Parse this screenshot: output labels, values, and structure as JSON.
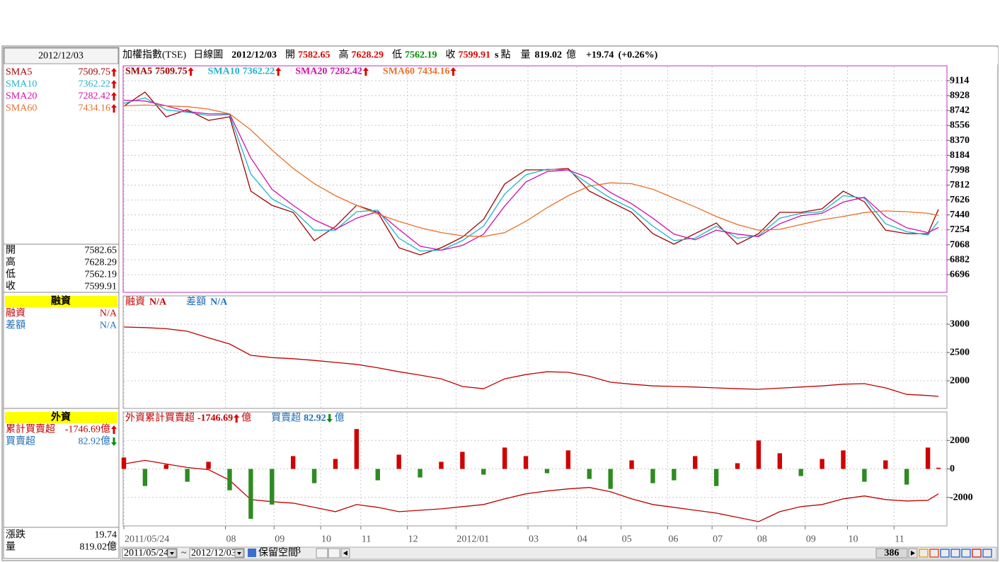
{
  "header": {
    "name": "加權指數(TSE)",
    "period": "日線圖",
    "date": "2012/12/03",
    "open_label": "開",
    "open": 7582.65,
    "high_label": "高",
    "high": 7628.29,
    "low_label": "低",
    "low": 7562.19,
    "close_label": "收",
    "close": 7599.91,
    "unit_s": "s",
    "unit": "點",
    "volume_label": "量",
    "volume": 819.02,
    "volume_unit": "億",
    "change": "+19.74",
    "change_pct": "(+0.26%)"
  },
  "sidebar": {
    "date": "2012/12/03",
    "margin_title": "融資",
    "foreign_title": "外資",
    "change_label": "漲跌",
    "change": 19.74
  },
  "chart_data": {
    "type": "stock-panels",
    "grid": true,
    "x": [
      0,
      10,
      20,
      30,
      40,
      50,
      60,
      70,
      80,
      90,
      100,
      110,
      120,
      130,
      140,
      150,
      160,
      170,
      180,
      190,
      200,
      210,
      220,
      230,
      240,
      250,
      260,
      270,
      280,
      290,
      300,
      310,
      320,
      330,
      340,
      350,
      360,
      370,
      380,
      385
    ],
    "xlim": [
      0,
      389
    ],
    "xticks": [
      {
        "value": 0,
        "label": "2011/05/24"
      },
      {
        "value": 48,
        "label": "08"
      },
      {
        "value": 71,
        "label": "09"
      },
      {
        "value": 93,
        "label": "10"
      },
      {
        "value": 112,
        "label": "11"
      },
      {
        "value": 134,
        "label": "12"
      },
      {
        "value": 157,
        "label": "2012/01"
      },
      {
        "value": 191,
        "label": "03"
      },
      {
        "value": 214,
        "label": "04"
      },
      {
        "value": 235,
        "label": "05"
      },
      {
        "value": 257,
        "label": "06"
      },
      {
        "value": 278,
        "label": "07"
      },
      {
        "value": 299,
        "label": "08"
      },
      {
        "value": 322,
        "label": "09"
      },
      {
        "value": 342,
        "label": "10"
      },
      {
        "value": 364,
        "label": "11"
      }
    ],
    "panels": [
      {
        "type": "line",
        "ylim": [
          6475,
          9299
        ],
        "yticks": [
          6696,
          6882,
          7068,
          7254,
          7440,
          7626,
          7812,
          7998,
          8184,
          8370,
          8556,
          8742,
          8928,
          9114
        ],
        "border": "#c030c0",
        "series": [
          {
            "name": "SMA5",
            "color": "#a00000",
            "latest": 7509.75,
            "trend": "up",
            "values": [
              8796,
              8972,
              8663,
              8752,
              8619,
              8663,
              7737,
              7560,
              7472,
              7119,
              7296,
              7560,
              7472,
              7031,
              6942,
              7031,
              7163,
              7384,
              7825,
              8002,
              8002,
              8019,
              7737,
              7604,
              7472,
              7207,
              7075,
              7207,
              7340,
              7075,
              7207,
              7472,
              7472,
              7516,
              7737,
              7604,
              7251,
              7207,
              7207,
              7509.75
            ]
          },
          {
            "name": "SMA10",
            "color": "#20b4c8",
            "latest": 7362.22,
            "trend": "up",
            "values": [
              8830,
              8900,
              8750,
              8720,
              8680,
              8690,
              7950,
              7640,
              7500,
              7250,
              7250,
              7480,
              7500,
              7150,
              6990,
              7000,
              7120,
              7300,
              7700,
              7940,
              8010,
              8000,
              7820,
              7650,
              7520,
              7300,
              7120,
              7150,
              7300,
              7150,
              7180,
              7400,
              7460,
              7480,
              7680,
              7650,
              7330,
              7230,
              7190,
              7362.22
            ]
          },
          {
            "name": "SMA20",
            "color": "#d010a8",
            "latest": 7282.42,
            "trend": "up",
            "values": [
              8870,
              8860,
              8800,
              8730,
              8700,
              8700,
              8150,
              7760,
              7560,
              7380,
              7260,
              7400,
              7480,
              7260,
              7050,
              7000,
              7060,
              7200,
              7550,
              7850,
              7980,
              8000,
              7900,
              7720,
              7580,
              7400,
              7200,
              7130,
              7250,
              7200,
              7170,
              7330,
              7430,
              7460,
              7600,
              7660,
              7420,
              7280,
              7220,
              7282.42
            ]
          },
          {
            "name": "SMA60",
            "color": "#e8702a",
            "latest": 7434.16,
            "trend": "up",
            "values": [
              8800,
              8810,
              8800,
              8790,
              8760,
              8700,
              8500,
              8250,
              8020,
              7830,
              7680,
              7560,
              7450,
              7360,
              7280,
              7220,
              7180,
              7170,
              7220,
              7360,
              7530,
              7680,
              7800,
              7840,
              7830,
              7760,
              7650,
              7540,
              7420,
              7320,
              7250,
              7260,
              7320,
              7380,
              7420,
              7470,
              7490,
              7480,
              7460,
              7434.16
            ]
          }
        ]
      },
      {
        "type": "line",
        "ylim": [
          1512,
          3500
        ],
        "yticks": [
          2000,
          2500,
          3000
        ],
        "border": "#999999",
        "series": [
          {
            "name": "融資",
            "color": "#c00000",
            "latest": "N/A",
            "values": [
              2950,
              2940,
              2920,
              2875,
              2760,
              2650,
              2450,
              2410,
              2390,
              2360,
              2325,
              2290,
              2230,
              2160,
              2100,
              2035,
              1900,
              1860,
              2035,
              2110,
              2160,
              2150,
              2080,
              1975,
              1940,
              1910,
              1900,
              1890,
              1875,
              1860,
              1850,
              1870,
              1890,
              1910,
              1940,
              1950,
              1875,
              1760,
              1740,
              1725
            ]
          }
        ],
        "extra_legend": [
          {
            "name": "差額",
            "color": "#1f6fb5",
            "latest": "N/A"
          }
        ]
      },
      {
        "type": "combo",
        "ylim": [
          -4000,
          4000
        ],
        "yticks": [
          -2000,
          0,
          2000
        ],
        "border": "#999999",
        "series": [
          {
            "name": "外資累計買賣超",
            "short_name": "累計買賣超",
            "type": "line",
            "color": "#c00000",
            "latest": -1746.69,
            "unit": "億",
            "trend": "up",
            "values": [
              350,
              600,
              350,
              100,
              -50,
              -800,
              -2150,
              -2300,
              -2400,
              -2700,
              -3000,
              -2500,
              -2700,
              -3000,
              -2900,
              -2800,
              -2650,
              -2500,
              -2100,
              -1750,
              -1550,
              -1400,
              -1300,
              -1600,
              -2100,
              -2500,
              -2700,
              -2900,
              -3100,
              -3400,
              -3700,
              -3000,
              -2650,
              -2500,
              -2100,
              -1900,
              -2150,
              -2250,
              -2200,
              -1746.69
            ]
          },
          {
            "name": "買賣超",
            "type": "bar",
            "color": "#1f6fb5",
            "up_color": "#d00000",
            "down_color": "#2e8b22",
            "latest": 82.92,
            "unit": "億",
            "trend": "down",
            "values": [
              800,
              -1200,
              300,
              -900,
              500,
              -1500,
              -3500,
              -2500,
              900,
              -1000,
              700,
              2800,
              -800,
              1000,
              -600,
              500,
              1200,
              -400,
              1500,
              900,
              -300,
              1300,
              -700,
              -1400,
              600,
              -1000,
              -800,
              900,
              -1200,
              400,
              2000,
              1100,
              -500,
              700,
              1300,
              -900,
              600,
              -1100,
              1500,
              82.92
            ]
          }
        ]
      }
    ]
  },
  "toolbar": {
    "from": "2011/05/24",
    "tilde": "~",
    "to": "2012/12/03",
    "reserve": "保留空間",
    "reserve_value": 3,
    "count": 386
  }
}
